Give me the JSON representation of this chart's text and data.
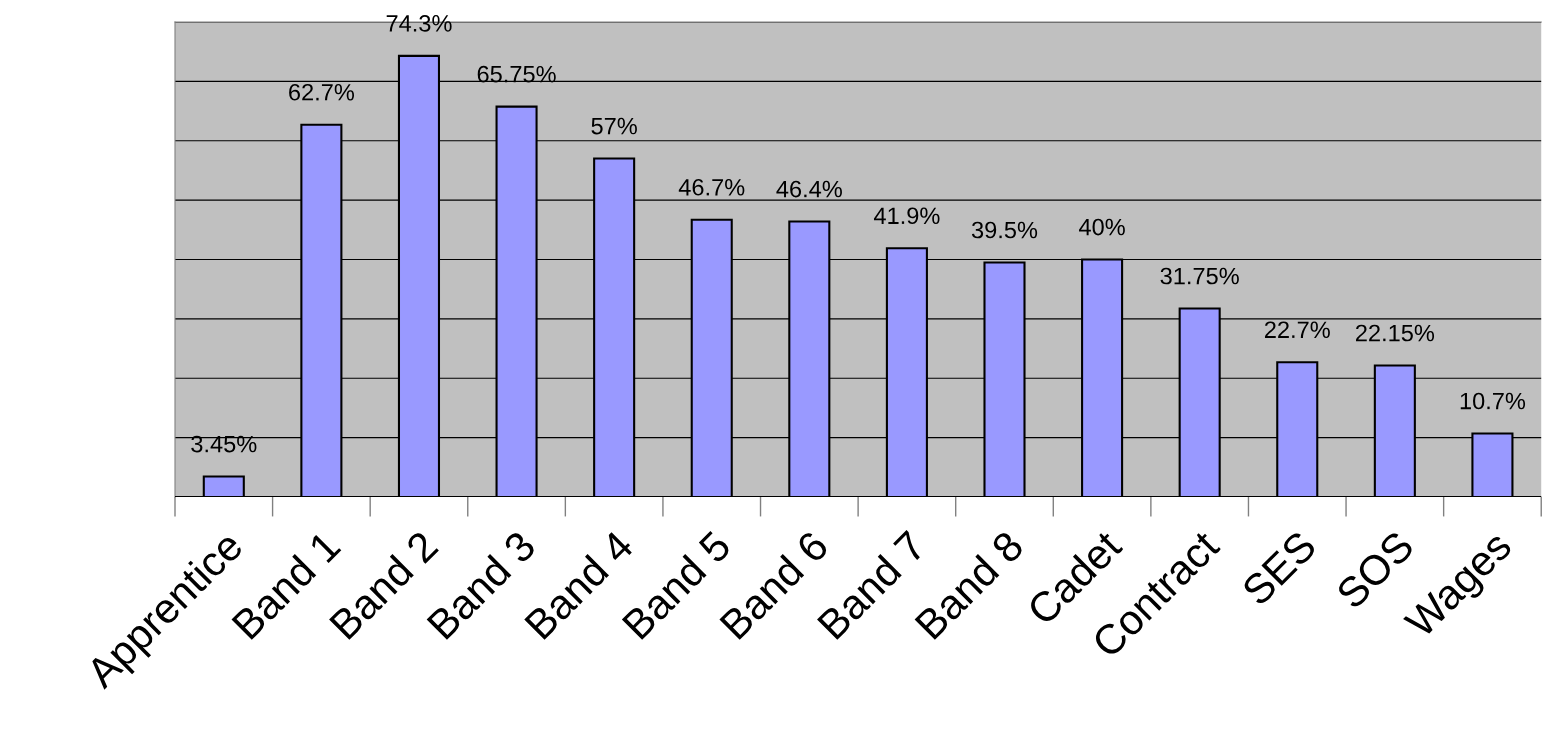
{
  "chart_data": {
    "type": "bar",
    "categories": [
      "Apprentice",
      "Band 1",
      "Band 2",
      "Band 3",
      "Band 4",
      "Band 5",
      "Band 6",
      "Band 7",
      "Band 8",
      "Cadet",
      "Contract",
      "SES",
      "SOS",
      "Wages"
    ],
    "values": [
      3.45,
      62.7,
      74.3,
      65.75,
      57,
      46.7,
      46.4,
      41.9,
      39.5,
      40,
      31.75,
      22.7,
      22.15,
      10.7
    ],
    "value_labels": [
      "3.45%",
      "62.7%",
      "74.3%",
      "65.75%",
      "57%",
      "46.7%",
      "46.4%",
      "41.9%",
      "39.5%",
      "40%",
      "31.75%",
      "22.7%",
      "22.15%",
      "10.7%"
    ],
    "color": "#9999ff",
    "ylim": [
      0,
      80
    ],
    "yticks": [
      {
        "value": 10,
        "label": null
      },
      {
        "value": 20,
        "label": null
      },
      {
        "value": 30,
        "label": null
      },
      {
        "value": 40,
        "label": null
      },
      {
        "value": 50,
        "label": null
      },
      {
        "value": 60,
        "label": null
      },
      {
        "value": 70,
        "label": null
      },
      {
        "value": 80,
        "label": null
      }
    ],
    "tick_labels": "x",
    "grid": "y"
  }
}
